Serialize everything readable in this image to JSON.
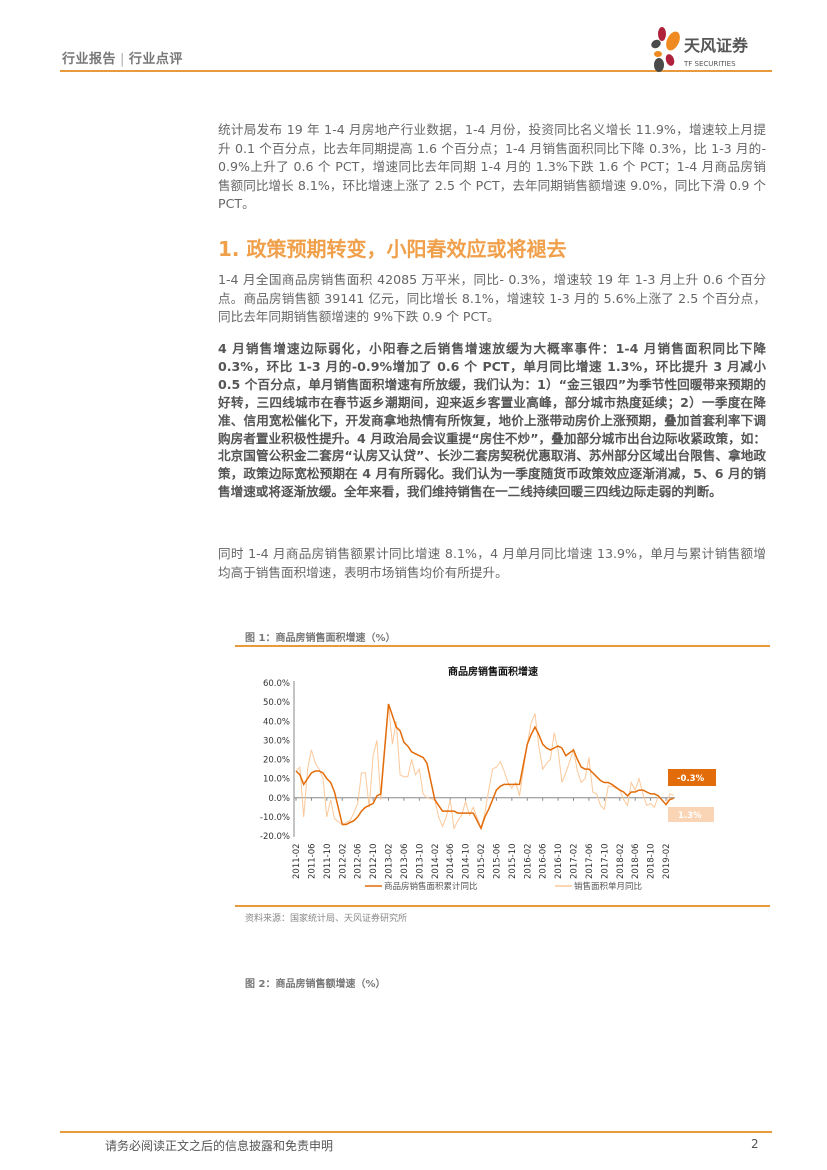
{
  "header": {
    "category": "行业报告",
    "subcategory": "行业点评",
    "logo_name": "天风证券",
    "logo_sub": "TF SECURITIES"
  },
  "paragraphs": {
    "p1": "统计局发布 19 年 1-4 月房地产行业数据，1-4 月份，投资同比名义增长 11.9%，增速较上月提升 0.1 个百分点，比去年同期提高 1.6 个百分点；1-4 月销售面积同比下降 0.3%，比 1-3 月的- 0.9%上升了 0.6 个 PCT，增速同比去年同期 1-4 月的 1.3%下跌 1.6 个 PCT；1-4 月商品房销售额同比增长 8.1%，环比增速上涨了 2.5 个 PCT，去年同期销售额增速 9.0%，同比下滑 0.9 个 PCT。",
    "heading": "1. 政策预期转变，小阳春效应或将褪去",
    "p2": "1-4 月全国商品房销售面积 42085 万平米，同比- 0.3%，增速较 19 年 1-3 月上升 0.6 个百分点。商品房销售额 39141 亿元，同比增长 8.1%，增速较 1-3 月的 5.6%上涨了 2.5 个百分点，同比去年同期销售额增速的 9%下跌 0.9 个 PCT。",
    "p3": "4 月销售增速边际弱化，小阳春之后销售增速放缓为大概率事件：1-4 月销售面积同比下降 0.3%，环比 1-3 月的-0.9%增加了 0.6 个 PCT，单月同比增速 1.3%，环比提升 3 月减小 0.5 个百分点，单月销售面积增速有所放缓，我们认为：1）“金三银四”为季节性回暖带来预期的好转，三四线城市在春节返乡潮期间，迎来返乡客置业高峰，部分城市热度延续；2）一季度在降准、信用宽松催化下，开发商拿地热情有所恢复，地价上涨带动房价上涨预期，叠加首套利率下调购房者置业积极性提升。4 月政治局会议重提“房住不炒”，叠加部分城市出台边际收紧政策，如：北京国管公积金二套房“认房又认贷”、长沙二套房契税优惠取消、苏州部分区域出台限售、拿地政策，政策边际宽松预期在 4 月有所弱化。我们认为一季度随货币政策效应逐渐消减，5、6 月的销售增速或将逐渐放缓。全年来看，我们维持销售在一二线持续回暖三四线边际走弱的判断。",
    "p4": "同时 1-4 月商品房销售额累计同比增速 8.1%，4 月单月同比增速 13.9%，单月与累计销售额增均高于销售面积增速，表明市场销售均价有所提升。"
  },
  "figure1": {
    "caption": "图 1：商品房销售面积增速（%）",
    "source": "资料来源：国家统计局、天风证券研究所"
  },
  "figure2": {
    "caption": "图 2：商品房销售额增速（%）"
  },
  "footer": {
    "disclaimer": "请务必阅读正文之后的信息披露和免责申明",
    "page_number": "2"
  },
  "colors": {
    "accent": "#e89a3c",
    "cumulative": "#e36c0a",
    "monthly": "#fbc89a",
    "heading": "#f0a04b"
  },
  "chart_data": {
    "type": "line",
    "title": "商品房销售面积增速",
    "ylim": [
      -20,
      60
    ],
    "yticks": [
      "60.0%",
      "50.0%",
      "40.0%",
      "30.0%",
      "20.0%",
      "10.0%",
      "0.0%",
      "-10.0%",
      "-20.0%"
    ],
    "xticks": [
      "2011-02",
      "2011-06",
      "2011-10",
      "2012-02",
      "2012-06",
      "2012-10",
      "2013-02",
      "2013-06",
      "2013-10",
      "2014-02",
      "2014-06",
      "2014-10",
      "2015-02",
      "2015-06",
      "2015-10",
      "2016-02",
      "2016-06",
      "2016-10",
      "2017-02",
      "2017-06",
      "2017-10",
      "2018-02",
      "2018-06",
      "2018-10",
      "2019-02"
    ],
    "grid": false,
    "legend": "bottom",
    "end_labels": {
      "cumulative": "-0.3%",
      "monthly": "1.3%"
    },
    "years": [
      2011,
      2012,
      2013,
      2014,
      2015,
      2016,
      2017,
      2018,
      2019
    ],
    "series": [
      {
        "name": "商品房销售面积累计同比",
        "values": {
          "2011": [
            14,
            12,
            7,
            10,
            13,
            14,
            14,
            13,
            10,
            8,
            3
          ],
          "2012": [
            -14,
            -14,
            -13,
            -12,
            -10,
            -7,
            -5,
            -4,
            -3,
            1,
            2
          ],
          "2013": [
            49,
            43,
            37,
            35,
            29,
            27,
            24,
            23,
            22,
            21,
            18
          ],
          "2014": [
            -1,
            -4,
            -7,
            -7,
            -7,
            -7,
            -8,
            -8,
            -8,
            -8,
            -8
          ],
          "2015": [
            -16,
            -10,
            -6,
            -1,
            4,
            6,
            7,
            7,
            7,
            7,
            7
          ],
          "2016": [
            28,
            33,
            37,
            33,
            28,
            26,
            25,
            26,
            27,
            26,
            22
          ],
          "2017": [
            25,
            20,
            16,
            15,
            15,
            13,
            11,
            9,
            8,
            8,
            7
          ],
          "2018": [
            4,
            3,
            1,
            3,
            3,
            4,
            4,
            3,
            2,
            2,
            1
          ],
          "2019": [
            -3.6,
            -0.9,
            -0.3
          ]
        }
      },
      {
        "name": "销售面积单月同比",
        "values": {
          "2011": [
            14,
            16,
            -10,
            15,
            25,
            18,
            15,
            10,
            -10,
            -1,
            -11
          ],
          "2012": [
            -14,
            -13,
            -12,
            -8,
            -3,
            13,
            13,
            -5,
            22,
            30,
            -1
          ],
          "2013": [
            49,
            28,
            40,
            12,
            11,
            11,
            20,
            12,
            15,
            2,
            0
          ],
          "2014": [
            -1,
            -10,
            -15,
            -10,
            -1,
            -16,
            -12,
            -9,
            -2,
            -9,
            -5
          ],
          "2015": [
            -16,
            -8,
            4,
            15,
            16,
            19,
            14,
            8,
            5,
            8,
            1
          ],
          "2016": [
            28,
            39,
            44,
            27,
            15,
            18,
            20,
            34,
            25,
            8,
            13
          ],
          "2017": [
            25,
            14,
            8,
            10,
            21,
            3,
            2,
            -4,
            -6,
            6,
            6
          ],
          "2018": [
            4,
            -1,
            -4,
            8,
            4,
            10,
            2,
            -4,
            -3,
            -5,
            1
          ],
          "2019": [
            -3.6,
            2,
            1.3
          ]
        }
      }
    ]
  }
}
